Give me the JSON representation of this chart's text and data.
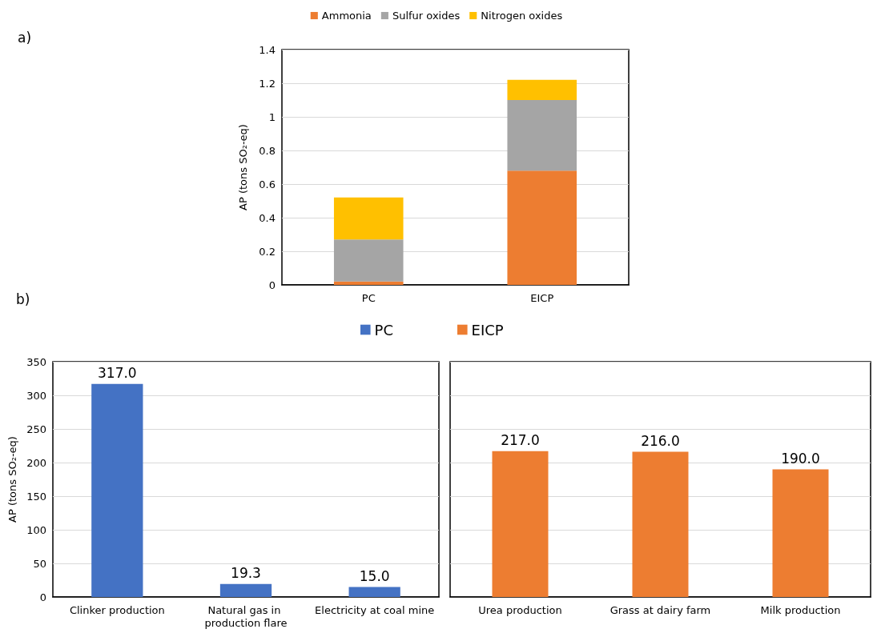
{
  "chart_data": [
    {
      "type": "bar",
      "stacked": true,
      "categories": [
        "PC",
        "EICP"
      ],
      "ylabel": "AP (tons SO₂-eq)",
      "ylim": [
        0,
        1.4
      ],
      "yticks": [
        0,
        0.2,
        0.4,
        0.6,
        0.8,
        1,
        1.2,
        1.4
      ],
      "grid": "y",
      "legend": "top",
      "annotations": [
        "a)"
      ],
      "series": [
        {
          "name": "Ammonia",
          "color": "#ed7d31",
          "values": [
            0.02,
            0.68
          ]
        },
        {
          "name": "Sulfur oxides",
          "color": "#a5a5a5",
          "values": [
            0.25,
            0.42
          ]
        },
        {
          "name": "Nitrogen oxides",
          "color": "#ffc000",
          "values": [
            0.25,
            0.12
          ]
        }
      ]
    },
    {
      "type": "bar",
      "categories": [
        "Clinker production",
        "Natural gas in production flare",
        "Electricity at coal mine"
      ],
      "ylabel": "AP (tons SO₂-eq)",
      "ylim": [
        0,
        350
      ],
      "yticks": [
        0,
        50,
        100,
        150,
        200,
        250,
        300,
        350
      ],
      "grid": "y",
      "legend": "top right",
      "annotations": [
        "b)"
      ],
      "series": [
        {
          "name": "PC",
          "color": "#4472c4",
          "values": [
            317,
            19.3,
            15
          ],
          "value_labels": [
            "317.0",
            "19.3",
            "15.0"
          ]
        }
      ]
    },
    {
      "type": "bar",
      "categories": [
        "Urea production",
        "Grass at dairy farm",
        "Milk production"
      ],
      "ylim": [
        0,
        350
      ],
      "yticks": [
        0,
        50,
        100,
        150,
        200,
        250,
        300,
        350
      ],
      "grid": "y",
      "legend": "top left",
      "tick_labels": "x",
      "series": [
        {
          "name": "EICP",
          "color": "#ed7d31",
          "values": [
            217,
            216,
            190
          ],
          "value_labels": [
            "217.0",
            "216.0",
            "190.0"
          ]
        }
      ]
    }
  ]
}
